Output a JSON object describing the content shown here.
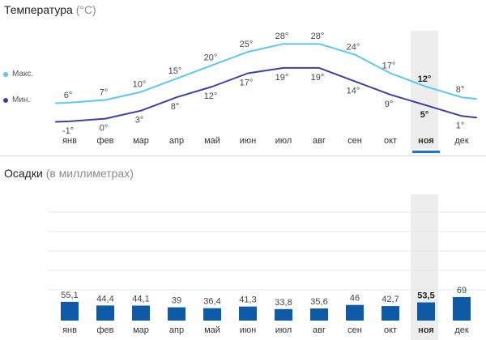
{
  "temperature": {
    "title": "Температура",
    "unit": "(°C)",
    "legend_max": "Макс.",
    "legend_min": "Мин.",
    "color_max": "#5bc8ef",
    "color_min": "#3f3fa3"
  },
  "precipitation": {
    "title": "Осадки",
    "unit": "(в миллиметрах)",
    "bar_color": "#0f5aa6"
  },
  "highlight_color": "#ededed",
  "selected_index": 10,
  "chart_data": [
    {
      "type": "line",
      "categories": [
        "янв",
        "фев",
        "мар",
        "апр",
        "май",
        "июн",
        "июл",
        "авг",
        "сен",
        "окт",
        "ноя",
        "дек"
      ],
      "series": [
        {
          "name": "Макс.",
          "values": [
            6,
            7,
            10,
            15,
            20,
            25,
            28,
            28,
            24,
            17,
            12,
            8
          ],
          "labels": [
            "6°",
            "7°",
            "10°",
            "15°",
            "20°",
            "25°",
            "28°",
            "28°",
            "24°",
            "17°",
            "12°",
            "8°"
          ]
        },
        {
          "name": "Мин.",
          "values": [
            -1,
            0,
            3,
            8,
            12,
            17,
            19,
            19,
            14,
            9,
            5,
            1
          ],
          "labels": [
            "-1°",
            "0°",
            "3°",
            "8°",
            "12°",
            "17°",
            "19°",
            "19°",
            "14°",
            "9°",
            "5°",
            "1°"
          ]
        }
      ],
      "title": "Температура (°C)"
    },
    {
      "type": "bar",
      "categories": [
        "янв",
        "фев",
        "мар",
        "апр",
        "май",
        "июн",
        "июл",
        "авг",
        "сен",
        "окт",
        "ноя",
        "дек"
      ],
      "values": [
        55.1,
        44.4,
        44.1,
        39,
        36.4,
        41.3,
        33.8,
        35.6,
        46,
        42.7,
        53.5,
        69
      ],
      "labels": [
        "55,1",
        "44,4",
        "44,1",
        "39",
        "36,4",
        "41,3",
        "33,8",
        "35,6",
        "46",
        "42,7",
        "53,5",
        "69"
      ],
      "title": "Осадки (в миллиметрах)",
      "grid": true
    }
  ]
}
